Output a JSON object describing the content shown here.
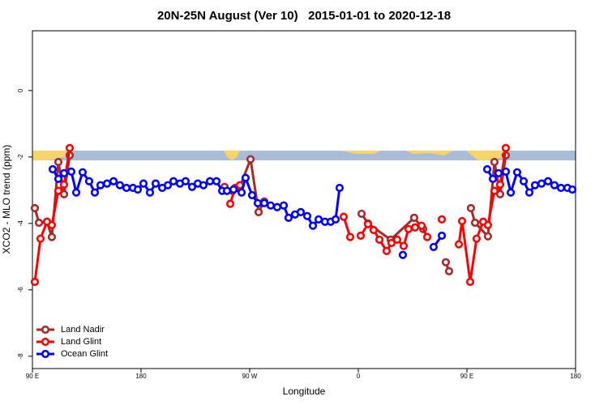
{
  "chart_data": {
    "type": "line",
    "title": "20N-25N August (Ver 10)   2015-01-01 to 2020-12-18",
    "xlabel": "Longitude",
    "ylabel": "XCO2 - MLO trend (ppm)",
    "xlim": [
      90,
      540
    ],
    "ylim": [
      -8.37,
      1.8
    ],
    "xticks": [
      {
        "value": 90,
        "label": "90 E"
      },
      180,
      {
        "value": 270,
        "label": "90 W"
      },
      {
        "value": 360,
        "label": "0"
      },
      {
        "value": 450,
        "label": "90 E"
      },
      {
        "value": 540,
        "label": "180"
      }
    ],
    "yticks": [
      0,
      -2,
      -4,
      -6,
      -8
    ],
    "legend": "bottom-left",
    "series": [
      {
        "name": "Land Nadir",
        "color": "#a52a2a",
        "x": [
          92.0,
          95.4,
          102.1,
          106.1,
          111.5,
          116.2,
          120.9,
          null,
          249.2,
          255.9,
          261.9,
          270.7,
          277.4,
          282.1,
          null,
          362.7,
          368.0,
          386.8,
          406.3,
          413.7,
          null,
          432.5,
          435.2,
          null,
          453.3,
          456.7,
          467.4,
          472.8,
          477.5,
          482.2
        ],
        "values": [
          -3.54,
          -3.98,
          -3.95,
          -4.41,
          -2.15,
          -3.12,
          -1.95,
          null,
          -2.9,
          -3.02,
          -2.9,
          -2.07,
          -3.66,
          -3.34,
          null,
          -3.71,
          -4.0,
          -4.49,
          -3.83,
          -4.17,
          null,
          -5.17,
          -5.44,
          null,
          -3.54,
          -3.98,
          -4.39,
          -2.15,
          -3.12,
          -1.95
        ]
      },
      {
        "name": "Land Glint",
        "color": "#ff0000",
        "x": [
          92.0,
          96.7,
          102.1,
          106.1,
          111.5,
          116.2,
          120.9,
          null,
          253.9,
          257.9,
          261.9,
          null,
          347.9,
          353.3,
          null,
          362.0,
          368.0,
          372.7,
          377.5,
          383.5,
          387.5,
          392.2,
          397.6,
          401.6,
          407.0,
          412.4,
          417.1,
          null,
          429.2,
          null,
          443.3,
          446.0,
          452.7,
          458.0,
          463.4,
          467.4,
          472.8,
          477.5,
          482.2
        ],
        "values": [
          -5.76,
          -4.46,
          -3.95,
          -4.05,
          -3.02,
          -2.83,
          -1.73,
          null,
          -3.41,
          -2.93,
          -2.85,
          null,
          -3.8,
          -4.41,
          null,
          -4.37,
          -4.02,
          -4.2,
          -4.49,
          -4.83,
          -4.59,
          -4.49,
          -4.68,
          -4.17,
          -4.12,
          -4.07,
          -4.41,
          null,
          -3.88,
          null,
          -4.63,
          -3.93,
          -5.76,
          -4.46,
          -3.95,
          -4.05,
          -3.02,
          -2.83,
          -1.73
        ]
      },
      {
        "name": "Ocean Glint",
        "color": "#0000ff",
        "x": [
          106.8,
          111.5,
          116.2,
          122.2,
          126.3,
          131.6,
          137.0,
          141.7,
          146.4,
          151.8,
          157.2,
          162.5,
          167.9,
          173.3,
          177.3,
          182.0,
          187.4,
          192.1,
          197.5,
          202.2,
          206.9,
          212.2,
          216.9,
          222.3,
          227.0,
          231.7,
          237.1,
          242.5,
          247.2,
          251.2,
          256.6,
          263.3,
          266.6,
          272.0,
          276.7,
          282.1,
          287.4,
          292.8,
          298.2,
          302.2,
          307.6,
          312.3,
          317.7,
          322.4,
          327.1,
          332.4,
          337.1,
          341.2,
          344.5,
          null,
          396.9,
          null,
          422.4,
          429.2,
          null,
          466.8,
          471.5,
          476.2,
          482.2,
          486.3,
          491.6,
          497.0,
          501.7,
          506.4,
          511.8,
          517.2,
          522.5,
          527.9,
          533.3,
          537.3
        ],
        "values": [
          -2.37,
          -2.66,
          -2.49,
          -2.44,
          -3.07,
          -2.46,
          -2.73,
          -3.07,
          -2.85,
          -2.8,
          -2.73,
          -2.85,
          -2.93,
          -2.93,
          -2.98,
          -2.8,
          -3.07,
          -2.8,
          -2.93,
          -2.85,
          -2.73,
          -2.8,
          -2.73,
          -2.9,
          -2.8,
          -2.85,
          -2.73,
          -2.73,
          -3.02,
          -3.02,
          -2.98,
          -3.07,
          -2.63,
          -3.15,
          -3.39,
          -3.39,
          -3.46,
          -3.51,
          -3.46,
          -3.83,
          -3.73,
          -3.66,
          -3.78,
          -4.07,
          -3.88,
          -3.95,
          -3.95,
          -3.88,
          -2.93,
          null,
          -4.95,
          null,
          -4.71,
          -4.37,
          null,
          -2.37,
          -2.66,
          -2.49,
          -2.44,
          -3.07,
          -2.46,
          -2.73,
          -3.07,
          -2.85,
          -2.8,
          -2.73,
          -2.85,
          -2.93,
          -2.93,
          -2.98
        ]
      }
    ]
  }
}
